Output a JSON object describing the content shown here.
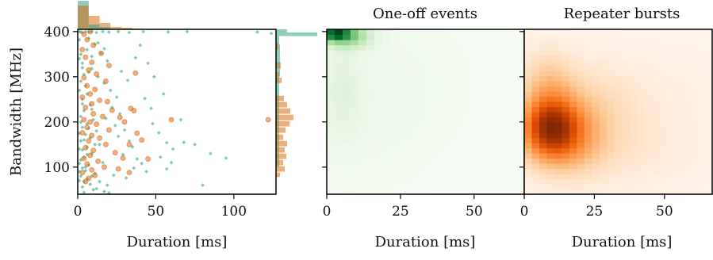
{
  "chart_data": [
    {
      "type": "scatter",
      "xlabel": "Duration [ms]",
      "ylabel": "Bandwidth [MHz]",
      "xlim": [
        0,
        127
      ],
      "ylim": [
        40,
        405
      ],
      "xticks": [
        0,
        50,
        100
      ],
      "yticks": [
        100,
        200,
        300,
        400
      ],
      "marginal_histograms": [
        "top",
        "right"
      ],
      "series": [
        {
          "color": "#1b9e77",
          "marker": "diamond",
          "points": [
            [
              1,
              400
            ],
            [
              2,
              399
            ],
            [
              3,
              398
            ],
            [
              5,
              400
            ],
            [
              7,
              399
            ],
            [
              9,
              400
            ],
            [
              12,
              398
            ],
            [
              16,
              400
            ],
            [
              20,
              399
            ],
            [
              26,
              400
            ],
            [
              33,
              398
            ],
            [
              42,
              400
            ],
            [
              58,
              399
            ],
            [
              70,
              400
            ],
            [
              115,
              399
            ],
            [
              124,
              396
            ],
            [
              1,
              382
            ],
            [
              2,
              350
            ],
            [
              3,
              330
            ],
            [
              4,
              305
            ],
            [
              2,
              290
            ],
            [
              5,
              280
            ],
            [
              6,
              262
            ],
            [
              3,
              250
            ],
            [
              8,
              238
            ],
            [
              4,
              225
            ],
            [
              2,
              212
            ],
            [
              10,
              205
            ],
            [
              6,
              196
            ],
            [
              3,
              188
            ],
            [
              12,
              180
            ],
            [
              5,
              172
            ],
            [
              8,
              165
            ],
            [
              2,
              158
            ],
            [
              14,
              150
            ],
            [
              6,
              144
            ],
            [
              3,
              138
            ],
            [
              9,
              130
            ],
            [
              4,
              122
            ],
            [
              2,
              116
            ],
            [
              16,
              110
            ],
            [
              7,
              104
            ],
            [
              3,
              98
            ],
            [
              5,
              92
            ],
            [
              11,
              86
            ],
            [
              2,
              80
            ],
            [
              6,
              74
            ],
            [
              4,
              68
            ],
            [
              8,
              62
            ],
            [
              3,
              56
            ],
            [
              10,
              50
            ],
            [
              4,
              44
            ],
            [
              7,
              385
            ],
            [
              11,
              372
            ],
            [
              15,
              352
            ],
            [
              19,
              335
            ],
            [
              9,
              318
            ],
            [
              13,
              300
            ],
            [
              17,
              286
            ],
            [
              21,
              270
            ],
            [
              25,
              255
            ],
            [
              22,
              232
            ],
            [
              27,
              218
            ],
            [
              18,
              208
            ],
            [
              24,
              192
            ],
            [
              30,
              182
            ],
            [
              26,
              168
            ],
            [
              33,
              158
            ],
            [
              35,
              145
            ],
            [
              29,
              128
            ],
            [
              38,
              118
            ],
            [
              41,
              108
            ],
            [
              36,
              98
            ],
            [
              44,
              90
            ],
            [
              23,
              82
            ],
            [
              31,
              76
            ],
            [
              14,
              68
            ],
            [
              19,
              60
            ],
            [
              12,
              52
            ],
            [
              17,
              46
            ],
            [
              47,
              230
            ],
            [
              52,
              176
            ],
            [
              57,
              154
            ],
            [
              61,
              140
            ],
            [
              66,
              205
            ],
            [
              45,
              330
            ],
            [
              49,
              300
            ],
            [
              40,
              370
            ],
            [
              55,
              262
            ],
            [
              60,
              110
            ],
            [
              28,
              312
            ],
            [
              32,
              292
            ],
            [
              37,
              342
            ],
            [
              43,
              252
            ],
            [
              48,
              196
            ],
            [
              53,
              122
            ],
            [
              57,
              96
            ],
            [
              68,
              155
            ],
            [
              75,
              150
            ],
            [
              85,
              130
            ],
            [
              95,
              120
            ],
            [
              80,
              60
            ],
            [
              20,
              43
            ],
            [
              13,
              375
            ],
            [
              17,
              362
            ],
            [
              6,
              360
            ],
            [
              9,
              345
            ],
            [
              1,
              340
            ],
            [
              3,
              320
            ],
            [
              7,
              310
            ],
            [
              1,
              270
            ],
            [
              3,
              240
            ],
            [
              9,
              228
            ],
            [
              2,
              200
            ],
            [
              7,
              186
            ],
            [
              1,
              175
            ],
            [
              4,
              160
            ],
            [
              11,
              150
            ],
            [
              1,
              140
            ],
            [
              6,
              128
            ],
            [
              1,
              108
            ],
            [
              5,
              100
            ],
            [
              1,
              90
            ],
            [
              9,
              80
            ],
            [
              1,
              70
            ]
          ]
        },
        {
          "color": "#d95f02",
          "marker": "circle",
          "points": [
            [
              8,
              400
            ],
            [
              4,
              394
            ],
            [
              6,
              382
            ],
            [
              10,
              370
            ],
            [
              3,
              360
            ],
            [
              15,
              352
            ],
            [
              5,
              343
            ],
            [
              9,
              332
            ],
            [
              20,
              325
            ],
            [
              7,
              315
            ],
            [
              12,
              306
            ],
            [
              4,
              298
            ],
            [
              18,
              290
            ],
            [
              6,
              280
            ],
            [
              11,
              272
            ],
            [
              8,
              262
            ],
            [
              3,
              255
            ],
            [
              14,
              248
            ],
            [
              9,
              240
            ],
            [
              5,
              232
            ],
            [
              22,
              226
            ],
            [
              10,
              218
            ],
            [
              16,
              212
            ],
            [
              4,
              205
            ],
            [
              8,
              200
            ],
            [
              12,
              195
            ],
            [
              6,
              188
            ],
            [
              20,
              182
            ],
            [
              3,
              176
            ],
            [
              9,
              170
            ],
            [
              14,
              164
            ],
            [
              7,
              158
            ],
            [
              18,
              150
            ],
            [
              5,
              143
            ],
            [
              10,
              137
            ],
            [
              24,
              132
            ],
            [
              8,
              126
            ],
            [
              4,
              119
            ],
            [
              13,
              113
            ],
            [
              6,
              107
            ],
            [
              17,
              100
            ],
            [
              9,
              94
            ],
            [
              3,
              88
            ],
            [
              11,
              82
            ],
            [
              7,
              75
            ],
            [
              5,
              68
            ],
            [
              34,
              230
            ],
            [
              36,
              225
            ],
            [
              27,
              210
            ],
            [
              30,
              200
            ],
            [
              38,
              175
            ],
            [
              41,
              160
            ],
            [
              33,
              150
            ],
            [
              29,
              120
            ],
            [
              45,
              118
            ],
            [
              60,
              205
            ],
            [
              122,
              205
            ],
            [
              33,
              88
            ],
            [
              26,
              96
            ],
            [
              37,
              308
            ],
            [
              19,
              245
            ]
          ]
        }
      ]
    },
    {
      "type": "heatmap",
      "title": "One-off events",
      "xlabel": "Duration [ms]",
      "xlim": [
        0,
        67
      ],
      "ylim": [
        40,
        405
      ],
      "xticks": [
        0,
        25,
        50
      ],
      "colormap": "Greens"
    },
    {
      "type": "heatmap",
      "title": "Repeater bursts",
      "xlabel": "Duration [ms]",
      "xlim": [
        0,
        67
      ],
      "ylim": [
        40,
        405
      ],
      "xticks": [
        0,
        25,
        50
      ],
      "colormap": "Oranges"
    }
  ]
}
